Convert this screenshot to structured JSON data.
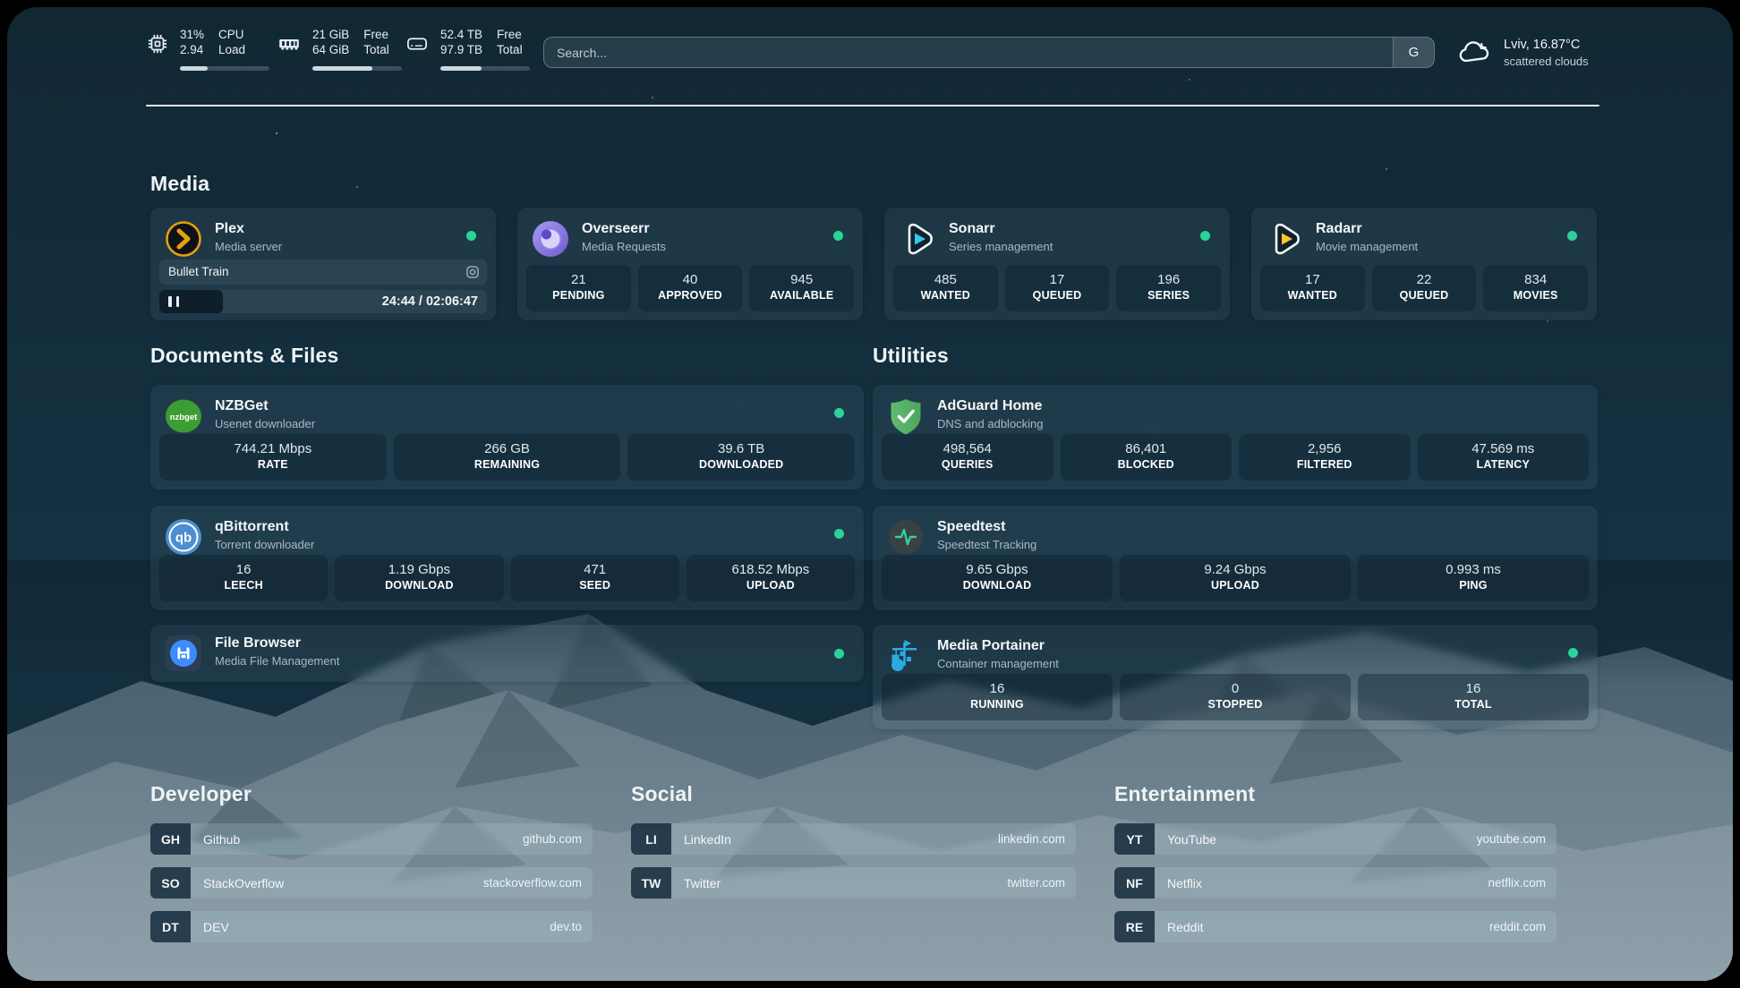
{
  "topbar": {
    "stats": [
      {
        "icon": "cpu-icon",
        "values": [
          "31%",
          "2.94"
        ],
        "labels": [
          "CPU",
          "Load"
        ],
        "progress_pct": 31
      },
      {
        "icon": "memory-icon",
        "values": [
          "21 GiB",
          "64 GiB"
        ],
        "labels": [
          "Free",
          "Total"
        ],
        "progress_pct": 67
      },
      {
        "icon": "disk-icon",
        "values": [
          "52.4 TB",
          "97.9 TB"
        ],
        "labels": [
          "Free",
          "Total"
        ],
        "progress_pct": 46
      }
    ],
    "search": {
      "placeholder": "Search...",
      "provider_button": "G"
    },
    "weather": {
      "icon": "cloud-icon",
      "location_temp": "Lviv, 16.87°C",
      "condition": "scattered clouds"
    }
  },
  "sections": {
    "media": {
      "title": "Media",
      "cards": [
        {
          "name": "Plex",
          "subtitle": "Media server",
          "icon": "plex-icon",
          "status": "online",
          "now_playing": {
            "title": "Bullet Train",
            "time_display": "24:44 / 02:06:47",
            "state": "paused",
            "progress_pct": 19.5
          }
        },
        {
          "name": "Overseerr",
          "subtitle": "Media Requests",
          "icon": "overseerr-icon",
          "status": "online",
          "stats": [
            {
              "value": "21",
              "label": "PENDING"
            },
            {
              "value": "40",
              "label": "APPROVED"
            },
            {
              "value": "945",
              "label": "AVAILABLE"
            }
          ]
        },
        {
          "name": "Sonarr",
          "subtitle": "Series management",
          "icon": "sonarr-icon",
          "status": "online",
          "stats": [
            {
              "value": "485",
              "label": "WANTED"
            },
            {
              "value": "17",
              "label": "QUEUED"
            },
            {
              "value": "196",
              "label": "SERIES"
            }
          ]
        },
        {
          "name": "Radarr",
          "subtitle": "Movie management",
          "icon": "radarr-icon",
          "status": "online",
          "stats": [
            {
              "value": "17",
              "label": "WANTED"
            },
            {
              "value": "22",
              "label": "QUEUED"
            },
            {
              "value": "834",
              "label": "MOVIES"
            }
          ]
        }
      ]
    },
    "documents": {
      "title": "Documents & Files",
      "cards": [
        {
          "name": "NZBGet",
          "subtitle": "Usenet downloader",
          "icon": "nzbget-icon",
          "status": "online",
          "stats": [
            {
              "value": "744.21 Mbps",
              "label": "RATE"
            },
            {
              "value": "266 GB",
              "label": "REMAINING"
            },
            {
              "value": "39.6 TB",
              "label": "DOWNLOADED"
            }
          ]
        },
        {
          "name": "qBittorrent",
          "subtitle": "Torrent downloader",
          "icon": "qbittorrent-icon",
          "status": "online",
          "stats": [
            {
              "value": "16",
              "label": "LEECH"
            },
            {
              "value": "1.19 Gbps",
              "label": "DOWNLOAD"
            },
            {
              "value": "471",
              "label": "SEED"
            },
            {
              "value": "618.52 Mbps",
              "label": "UPLOAD"
            }
          ]
        },
        {
          "name": "File Browser",
          "subtitle": "Media File Management",
          "icon": "filebrowser-icon",
          "status": "online",
          "stats": []
        }
      ]
    },
    "utilities": {
      "title": "Utilities",
      "cards": [
        {
          "name": "AdGuard Home",
          "subtitle": "DNS and adblocking",
          "icon": "adguard-icon",
          "stats": [
            {
              "value": "498,564",
              "label": "QUERIES"
            },
            {
              "value": "86,401",
              "label": "BLOCKED"
            },
            {
              "value": "2,956",
              "label": "FILTERED"
            },
            {
              "value": "47.569 ms",
              "label": "LATENCY"
            }
          ]
        },
        {
          "name": "Speedtest",
          "subtitle": "Speedtest Tracking",
          "icon": "speedtest-icon",
          "stats": [
            {
              "value": "9.65 Gbps",
              "label": "DOWNLOAD"
            },
            {
              "value": "9.24 Gbps",
              "label": "UPLOAD"
            },
            {
              "value": "0.993 ms",
              "label": "PING"
            }
          ]
        },
        {
          "name": "Media Portainer",
          "subtitle": "Container management",
          "icon": "portainer-icon",
          "status": "online",
          "stats": [
            {
              "value": "16",
              "label": "RUNNING"
            },
            {
              "value": "0",
              "label": "STOPPED"
            },
            {
              "value": "16",
              "label": "TOTAL"
            }
          ]
        }
      ]
    },
    "developer": {
      "title": "Developer",
      "items": [
        {
          "abbr": "GH",
          "label": "Github",
          "href": "github.com"
        },
        {
          "abbr": "SO",
          "label": "StackOverflow",
          "href": "stackoverflow.com"
        },
        {
          "abbr": "DT",
          "label": "DEV",
          "href": "dev.to"
        }
      ]
    },
    "social": {
      "title": "Social",
      "items": [
        {
          "abbr": "LI",
          "label": "LinkedIn",
          "href": "linkedin.com"
        },
        {
          "abbr": "TW",
          "label": "Twitter",
          "href": "twitter.com"
        }
      ]
    },
    "entertainment": {
      "title": "Entertainment",
      "items": [
        {
          "abbr": "YT",
          "label": "YouTube",
          "href": "youtube.com"
        },
        {
          "abbr": "NF",
          "label": "Netflix",
          "href": "netflix.com"
        },
        {
          "abbr": "RE",
          "label": "Reddit",
          "href": "reddit.com"
        }
      ]
    }
  },
  "colors": {
    "status_online": "#2bd396",
    "plex": "#e5a00d",
    "overseerr": "#8b7ce8",
    "sonarr": "#35c5f4",
    "radarr": "#ffc230",
    "nzbget": "#3d9c33",
    "qbittorrent": "#4c8fce",
    "adguard": "#67b279",
    "speedtest": "#2dd4a0",
    "portainer": "#29abe2",
    "filebrowser": "#3d8bfd"
  }
}
